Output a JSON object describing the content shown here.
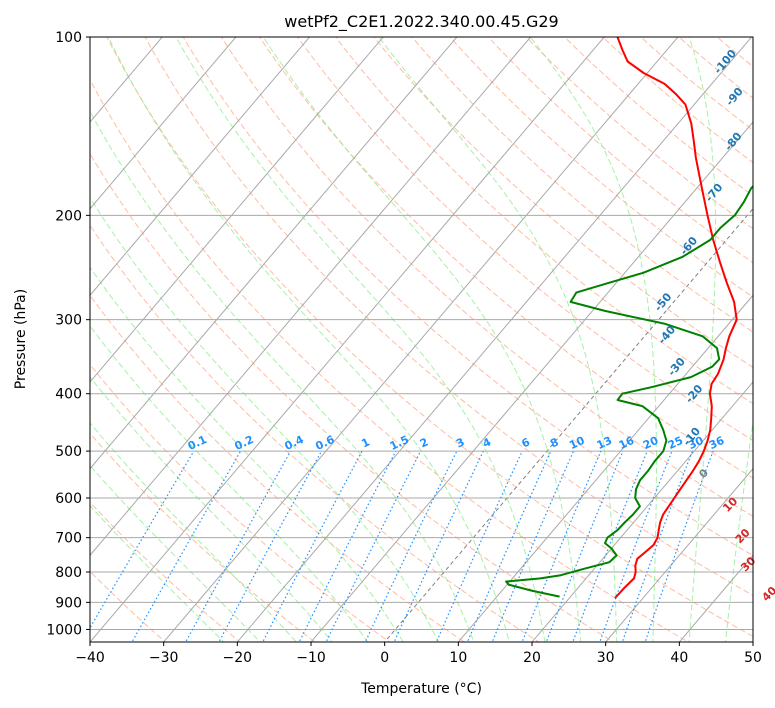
{
  "chart_data": {
    "type": "line",
    "title": "wetPf2_C2E1.2022.340.00.45.G29",
    "xlabel": "Temperature (°C)",
    "ylabel": "Pressure (hPa)",
    "xlim": [
      -40,
      50
    ],
    "ylim": [
      1050,
      100
    ],
    "y_scale": "log",
    "grid": true,
    "x_ticks": [
      "−40",
      "−30",
      "−20",
      "−10",
      "0",
      "10",
      "20",
      "30",
      "40",
      "50"
    ],
    "y_ticks": [
      {
        "p": 100,
        "label": "100"
      },
      {
        "p": 200,
        "label": "200"
      },
      {
        "p": 300,
        "label": "300"
      },
      {
        "p": 400,
        "label": "400"
      },
      {
        "p": 500,
        "label": "500"
      },
      {
        "p": 600,
        "label": "600"
      },
      {
        "p": 700,
        "label": "700"
      },
      {
        "p": 800,
        "label": "800"
      },
      {
        "p": 900,
        "label": "900"
      },
      {
        "p": 1000,
        "label": "1000"
      }
    ],
    "series": [
      {
        "color": "#ff0000",
        "points": [
          [
            885,
            26.2
          ],
          [
            850,
            26.3
          ],
          [
            820,
            26.5
          ],
          [
            800,
            26.0
          ],
          [
            780,
            25.2
          ],
          [
            760,
            24.7
          ],
          [
            740,
            25.0
          ],
          [
            720,
            25.3
          ],
          [
            700,
            25.0
          ],
          [
            680,
            24.3
          ],
          [
            660,
            23.6
          ],
          [
            640,
            23.1
          ],
          [
            620,
            22.9
          ],
          [
            600,
            22.7
          ],
          [
            580,
            22.5
          ],
          [
            560,
            22.3
          ],
          [
            540,
            22.1
          ],
          [
            520,
            21.8
          ],
          [
            500,
            21.3
          ],
          [
            480,
            20.6
          ],
          [
            460,
            19.7
          ],
          [
            440,
            18.5
          ],
          [
            420,
            17.2
          ],
          [
            400,
            15.5
          ],
          [
            385,
            14.6
          ],
          [
            370,
            14.3
          ],
          [
            350,
            13.4
          ],
          [
            335,
            12.4
          ],
          [
            320,
            11.5
          ],
          [
            300,
            10.6
          ],
          [
            280,
            8.2
          ],
          [
            260,
            5.0
          ],
          [
            240,
            1.7
          ],
          [
            220,
            -1.8
          ],
          [
            200,
            -5.4
          ],
          [
            180,
            -9.3
          ],
          [
            160,
            -13.6
          ],
          [
            150,
            -15.8
          ],
          [
            140,
            -18.2
          ],
          [
            130,
            -21.2
          ],
          [
            125,
            -23.6
          ],
          [
            120,
            -26.4
          ],
          [
            115,
            -30.5
          ],
          [
            110,
            -34.0
          ],
          [
            105,
            -36.1
          ],
          [
            100,
            -38.2
          ]
        ]
      },
      {
        "color": "#008000",
        "points": [
          [
            880,
            18.5
          ],
          [
            860,
            14.0
          ],
          [
            840,
            10.2
          ],
          [
            830,
            9.5
          ],
          [
            820,
            13.8
          ],
          [
            810,
            16.2
          ],
          [
            790,
            18.6
          ],
          [
            770,
            21.3
          ],
          [
            750,
            21.5
          ],
          [
            730,
            20.0
          ],
          [
            715,
            18.5
          ],
          [
            700,
            18.2
          ],
          [
            680,
            18.7
          ],
          [
            660,
            18.8
          ],
          [
            640,
            19.0
          ],
          [
            620,
            19.0
          ],
          [
            600,
            17.4
          ],
          [
            580,
            16.5
          ],
          [
            560,
            16.0
          ],
          [
            540,
            16.0
          ],
          [
            520,
            15.8
          ],
          [
            500,
            15.8
          ],
          [
            480,
            15.0
          ],
          [
            460,
            13.3
          ],
          [
            440,
            11.3
          ],
          [
            420,
            7.8
          ],
          [
            410,
            3.7
          ],
          [
            400,
            3.6
          ],
          [
            390,
            6.8
          ],
          [
            375,
            11.0
          ],
          [
            360,
            12.7
          ],
          [
            350,
            12.8
          ],
          [
            335,
            11.2
          ],
          [
            320,
            7.9
          ],
          [
            305,
            1.4
          ],
          [
            290,
            -8.3
          ],
          [
            280,
            -14.0
          ],
          [
            270,
            -14.3
          ],
          [
            260,
            -11.0
          ],
          [
            250,
            -7.5
          ],
          [
            235,
            -4.0
          ],
          [
            220,
            -2.2
          ],
          [
            210,
            -2.2
          ],
          [
            200,
            -1.7
          ],
          [
            190,
            -2.0
          ],
          [
            180,
            -2.6
          ],
          [
            170,
            -2.3
          ],
          [
            160,
            -2.2
          ],
          [
            150,
            -2.2
          ],
          [
            140,
            -2.5
          ],
          [
            130,
            -3.0
          ],
          [
            120,
            -3.6
          ],
          [
            115,
            -4.2
          ],
          [
            110,
            -4.4
          ],
          [
            105,
            -3.6
          ],
          [
            100,
            -2.8
          ]
        ]
      }
    ],
    "dry_adiabat_labels": [
      {
        "text": "-100",
        "t": -20.8,
        "p": 110
      },
      {
        "text": "-90",
        "t": -15.5,
        "p": 126
      },
      {
        "text": "-80",
        "t": -10.5,
        "p": 150
      },
      {
        "text": "-70",
        "t": -7.2,
        "p": 183
      },
      {
        "text": "-60",
        "t": -4.5,
        "p": 225
      },
      {
        "text": "-50",
        "t": -1.5,
        "p": 280
      },
      {
        "text": "-40",
        "t": 2.8,
        "p": 318
      },
      {
        "text": "-30",
        "t": 7.8,
        "p": 360
      },
      {
        "text": "-20",
        "t": 13.3,
        "p": 400
      },
      {
        "text": "-10",
        "t": 17.9,
        "p": 472
      }
    ],
    "moist_adiabat_labels": [
      {
        "text": "0",
        "t": 23.8,
        "p": 545
      },
      {
        "text": "10",
        "t": 31.0,
        "p": 615
      },
      {
        "text": "20",
        "t": 36.3,
        "p": 695
      },
      {
        "text": "30",
        "t": 40.3,
        "p": 775
      },
      {
        "text": "40",
        "t": 46.6,
        "p": 870
      }
    ],
    "mixing_ratio_labels": [
      "0.1",
      "0.2",
      "0.4",
      "0.6",
      "1",
      "1.5",
      "2",
      "3",
      "4",
      "6",
      "8",
      "10",
      "13",
      "16",
      "20",
      "25",
      "30",
      "36"
    ],
    "colors": {
      "temperature": "#ff0000",
      "dewpoint": "#008000",
      "dry_adiabat_labels": "#1f77b4",
      "mixing_ratio": "#1e90ff",
      "moist_adiabat_labels": "#d62728",
      "isotherm_grid": "#a9a9a9",
      "dry_adiabats": "#ffa07a",
      "moist_adiabats": "#90ee90",
      "isotherm_zero": "#808080"
    }
  }
}
